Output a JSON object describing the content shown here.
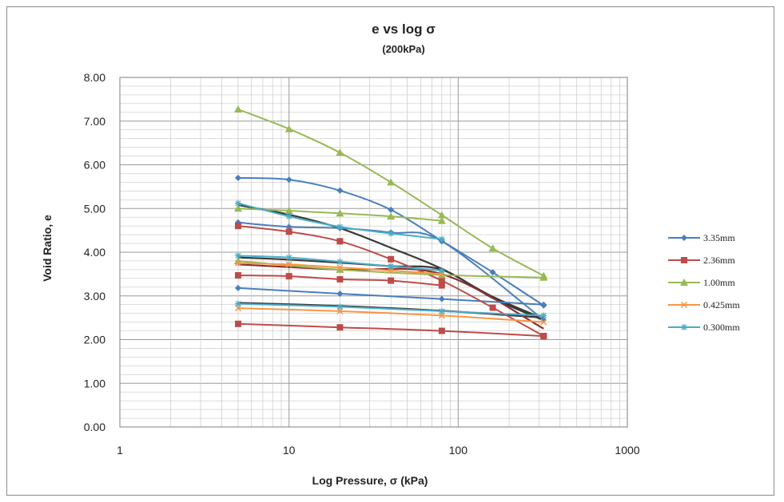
{
  "chart_data": {
    "type": "line",
    "title": "e vs log σ",
    "subtitle": "(200kPa)",
    "xlabel": "Log Pressure, σ (kPa)",
    "ylabel": "Void Ratio, e",
    "xscale": "log",
    "xlim": [
      1,
      1000
    ],
    "ylim": [
      0,
      8
    ],
    "x_ticks": [
      "1",
      "10",
      "100",
      "1000"
    ],
    "y_ticks": [
      "0.00",
      "1.00",
      "2.00",
      "3.00",
      "4.00",
      "5.00",
      "6.00",
      "7.00",
      "8.00"
    ],
    "grid": true,
    "legend_position": "right",
    "series": [
      {
        "name": "3.35mm",
        "color": "#4a7ebb",
        "marker": "diamond",
        "curves": [
          {
            "x": [
              5,
              10,
              20,
              40,
              80,
              160,
              320
            ],
            "y": [
              5.7,
              5.66,
              5.41,
              4.97,
              4.26,
              3.54,
              2.78
            ]
          },
          {
            "x": [
              5,
              10,
              20,
              40,
              80,
              320
            ],
            "y": [
              4.68,
              4.58,
              4.55,
              4.45,
              4.25,
              2.45
            ]
          },
          {
            "x": [
              5,
              20,
              80,
              320
            ],
            "y": [
              3.18,
              3.05,
              2.93,
              2.8
            ]
          }
        ]
      },
      {
        "name": "2.36mm",
        "color": "#be4b48",
        "marker": "square",
        "curves": [
          {
            "x": [
              5,
              10,
              20,
              40,
              80,
              160,
              320
            ],
            "y": [
              4.6,
              4.47,
              4.25,
              3.84,
              3.35,
              2.73,
              2.08
            ]
          },
          {
            "x": [
              5,
              10,
              20,
              40,
              80
            ],
            "y": [
              3.47,
              3.45,
              3.38,
              3.35,
              3.24
            ]
          },
          {
            "x": [
              5,
              20,
              80,
              320
            ],
            "y": [
              2.36,
              2.28,
              2.2,
              2.08
            ]
          }
        ]
      },
      {
        "name": "1.00mm",
        "color": "#98b954",
        "marker": "triangle",
        "curves": [
          {
            "x": [
              5,
              10,
              20,
              40,
              80,
              160,
              320
            ],
            "y": [
              7.27,
              6.82,
              6.28,
              5.6,
              4.85,
              4.09,
              3.46
            ]
          },
          {
            "x": [
              5,
              10,
              20,
              40,
              80
            ],
            "y": [
              5.0,
              4.95,
              4.89,
              4.82,
              4.72
            ]
          },
          {
            "x": [
              5,
              20,
              80,
              320
            ],
            "y": [
              3.8,
              3.6,
              3.48,
              3.42
            ]
          }
        ]
      },
      {
        "name": "0.425mm",
        "color": "#f79646",
        "marker": "x",
        "curves": [
          {
            "x": [
              5,
              10,
              20,
              40,
              80
            ],
            "y": [
              3.75,
              3.72,
              3.65,
              3.58,
              3.5
            ]
          },
          {
            "x": [
              5,
              20,
              80,
              320
            ],
            "y": [
              2.72,
              2.65,
              2.55,
              2.4
            ]
          }
        ]
      },
      {
        "name": "0.300mm",
        "color": "#4bacc6",
        "marker": "star",
        "curves": [
          {
            "x": [
              5,
              10,
              20,
              40,
              80
            ],
            "y": [
              3.92,
              3.88,
              3.78,
              3.68,
              3.58
            ]
          },
          {
            "x": [
              5,
              20,
              80,
              320
            ],
            "y": [
              2.82,
              2.75,
              2.65,
              2.55
            ]
          },
          {
            "x": [
              5,
              10,
              20,
              40,
              80
            ],
            "y": [
              5.12,
              4.82,
              4.58,
              4.43,
              4.3
            ]
          }
        ]
      }
    ],
    "unlabeled_curves": [
      {
        "color": "#3a3a3a",
        "x": [
          5,
          10,
          20,
          40,
          80,
          160,
          320
        ],
        "y": [
          5.08,
          4.86,
          4.55,
          4.1,
          3.62,
          2.98,
          2.48
        ]
      },
      {
        "color": "#3a3a3a",
        "x": [
          5,
          10,
          20,
          40,
          80,
          160,
          320
        ],
        "y": [
          3.88,
          3.83,
          3.76,
          3.68,
          3.6,
          2.95,
          2.44
        ]
      },
      {
        "color": "#3a3a3a",
        "x": [
          5,
          20,
          80,
          320
        ],
        "y": [
          2.84,
          2.77,
          2.66,
          2.5
        ]
      },
      {
        "color": "#8a3030",
        "x": [
          5,
          20,
          80,
          320
        ],
        "y": [
          3.72,
          3.6,
          3.5,
          2.25
        ]
      }
    ]
  }
}
